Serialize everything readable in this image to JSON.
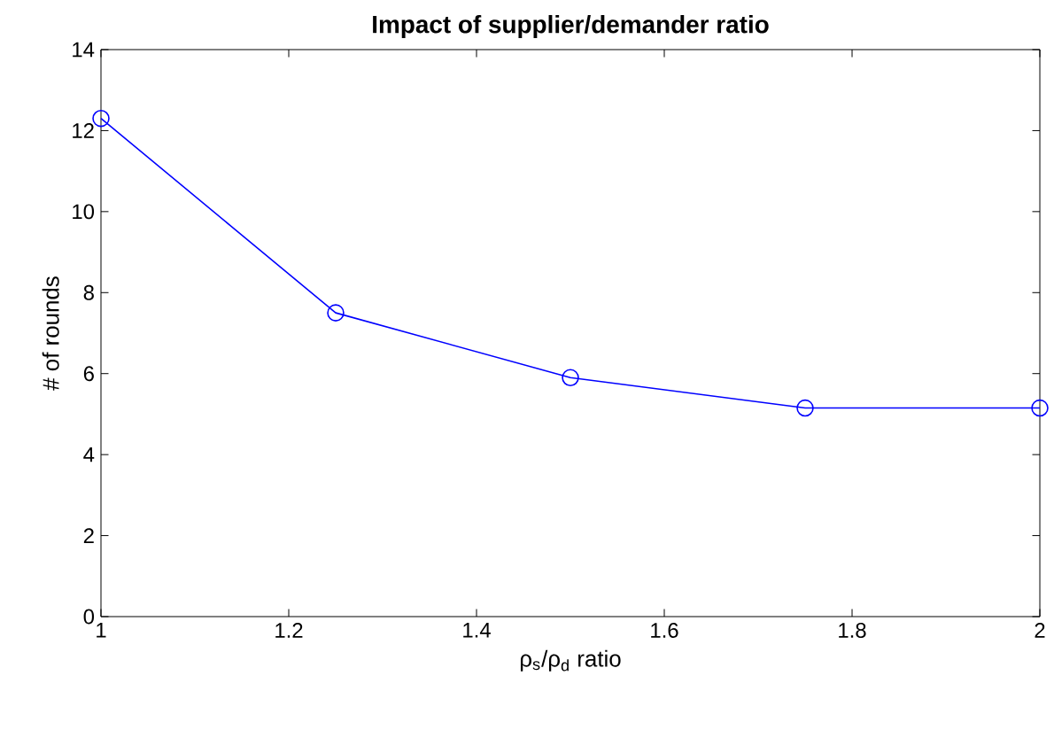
{
  "chart_data": {
    "type": "line",
    "title": "Impact of supplier/demander ratio",
    "xlabel": "ρ$_{s}$/ρ$_{d}$ ratio",
    "ylabel": "# of rounds",
    "x": [
      1,
      1.25,
      1.5,
      1.75,
      2
    ],
    "series": [
      {
        "color": "#0000ff",
        "values": [
          12.3,
          7.5,
          5.9,
          5.15,
          5.15
        ]
      }
    ],
    "xlim": [
      1,
      2
    ],
    "ylim": [
      0,
      14
    ],
    "xticks": [
      1,
      1.2,
      1.4,
      1.6,
      1.8,
      2
    ],
    "yticks": [
      0,
      2,
      4,
      6,
      8,
      10,
      12,
      14
    ],
    "marker": "circle",
    "line_style": "solid",
    "grid": false,
    "legend": false
  }
}
